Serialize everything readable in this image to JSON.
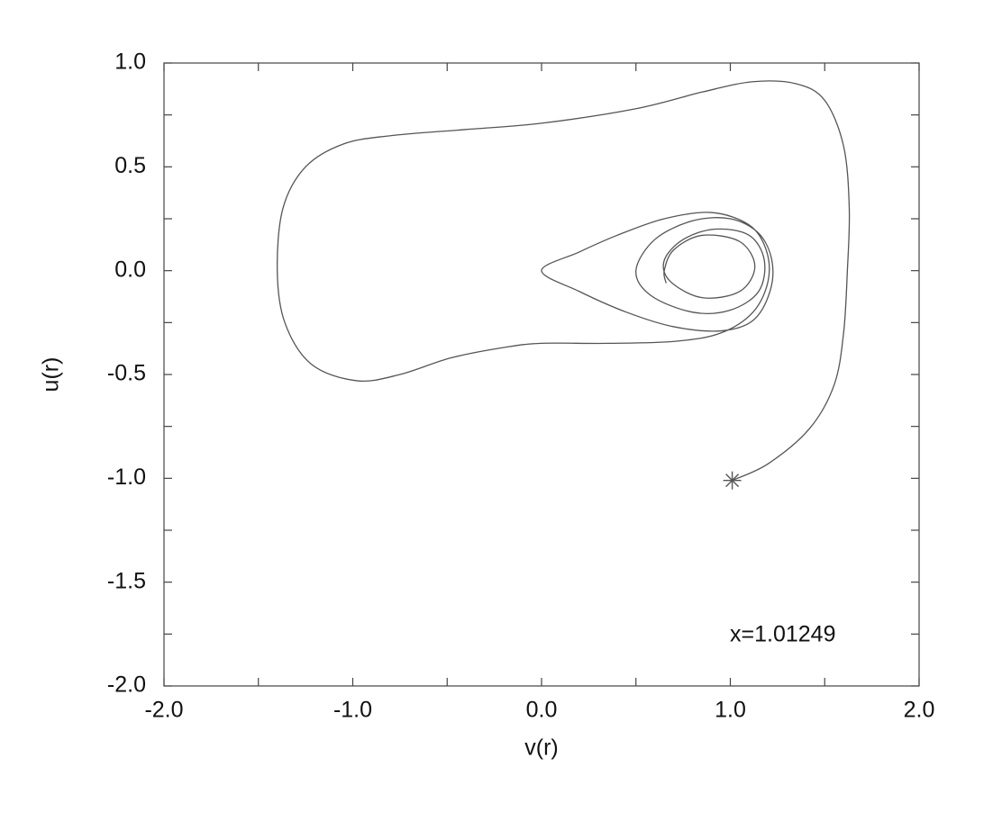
{
  "chart_data": {
    "type": "line",
    "xlabel": "v(r)",
    "ylabel": "u(r)",
    "annotation": "x=1.01249",
    "xlim": [
      -2,
      2
    ],
    "ylim": [
      -2,
      1
    ],
    "xticks": [
      {
        "value": -2,
        "label": "-2.0"
      },
      {
        "value": -1,
        "label": "-1.0"
      },
      {
        "value": 0,
        "label": "0.0"
      },
      {
        "value": 1,
        "label": "1.0"
      },
      {
        "value": 2,
        "label": "2.0"
      }
    ],
    "xminorticks": [
      -1.5,
      -0.5,
      0.5,
      1.5
    ],
    "yticks": [
      {
        "value": -2,
        "label": "-2.0"
      },
      {
        "value": -1.5,
        "label": "-1.5"
      },
      {
        "value": -1,
        "label": "-1.0"
      },
      {
        "value": -0.5,
        "label": "-0.5"
      },
      {
        "value": 0,
        "label": "0.0"
      },
      {
        "value": 0.5,
        "label": "0.5"
      },
      {
        "value": 1,
        "label": "1.0"
      }
    ],
    "yminorticks": [
      -1.75,
      -1.25,
      -0.75,
      -0.25,
      0.25,
      0.75
    ],
    "color": "#555555",
    "marker": {
      "x": 1.01,
      "y": -1.01
    },
    "x": [
      1.01,
      1.2,
      1.42,
      1.55,
      1.6,
      1.62,
      1.63,
      1.6,
      1.5,
      1.35,
      1.12,
      0.85,
      0.5,
      0.0,
      -0.4,
      -0.8,
      -1.05,
      -1.25,
      -1.37,
      -1.4,
      -1.36,
      -1.22,
      -0.98,
      -0.75,
      -0.48,
      -0.2,
      0.0,
      0.35,
      0.71,
      0.95,
      1.12,
      1.2,
      1.19,
      1.1,
      0.9,
      0.65,
      0.4,
      0.2,
      0.0,
      0.2,
      0.45,
      0.7,
      0.95,
      1.12,
      1.21,
      1.22,
      1.15,
      1.0,
      0.8,
      0.6,
      0.5,
      0.58,
      0.8,
      1.0,
      1.15,
      1.18,
      1.1,
      0.92,
      0.75,
      0.65,
      0.68,
      0.85,
      1.05,
      1.13,
      1.05,
      0.85,
      0.7,
      0.65,
      0.66
    ],
    "y": [
      -1.01,
      -0.93,
      -0.76,
      -0.55,
      -0.3,
      0.0,
      0.3,
      0.6,
      0.82,
      0.9,
      0.91,
      0.86,
      0.78,
      0.71,
      0.68,
      0.65,
      0.61,
      0.5,
      0.3,
      0.0,
      -0.25,
      -0.45,
      -0.53,
      -0.5,
      -0.42,
      -0.37,
      -0.35,
      -0.35,
      -0.34,
      -0.3,
      -0.2,
      -0.05,
      0.1,
      0.22,
      0.28,
      0.25,
      0.17,
      0.09,
      0.0,
      -0.1,
      -0.2,
      -0.27,
      -0.29,
      -0.24,
      -0.1,
      0.05,
      0.18,
      0.25,
      0.24,
      0.15,
      0.0,
      -0.12,
      -0.2,
      -0.19,
      -0.1,
      0.05,
      0.17,
      0.2,
      0.15,
      0.05,
      -0.05,
      -0.13,
      -0.1,
      0.02,
      0.14,
      0.17,
      0.1,
      0.0,
      -0.06
    ]
  }
}
